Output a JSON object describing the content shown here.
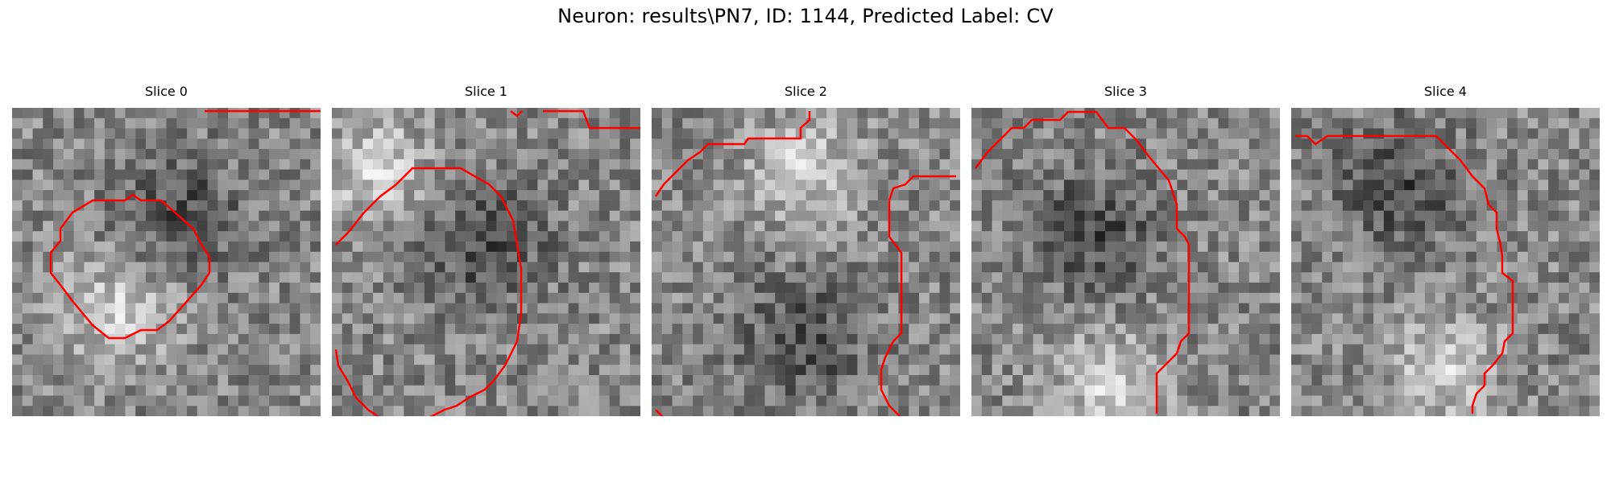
{
  "figure": {
    "title": "Neuron: results\\PN7, ID: 1144, Predicted Label: CV"
  },
  "panels": [
    {
      "title": "Slice 0",
      "seed": 11,
      "brightBlob": [
        0.35,
        0.65
      ],
      "darkBlob": [
        0.55,
        0.35
      ]
    },
    {
      "title": "Slice 1",
      "seed": 23,
      "brightBlob": [
        0.15,
        0.2
      ],
      "darkBlob": [
        0.5,
        0.45
      ]
    },
    {
      "title": "Slice 2",
      "seed": 37,
      "brightBlob": [
        0.5,
        0.2
      ],
      "darkBlob": [
        0.5,
        0.75
      ]
    },
    {
      "title": "Slice 3",
      "seed": 53,
      "brightBlob": [
        0.45,
        0.9
      ],
      "darkBlob": [
        0.4,
        0.4
      ]
    },
    {
      "title": "Slice 4",
      "seed": 71,
      "brightBlob": [
        0.5,
        0.85
      ],
      "darkBlob": [
        0.35,
        0.25
      ]
    }
  ],
  "contour_color": "#ff0000"
}
